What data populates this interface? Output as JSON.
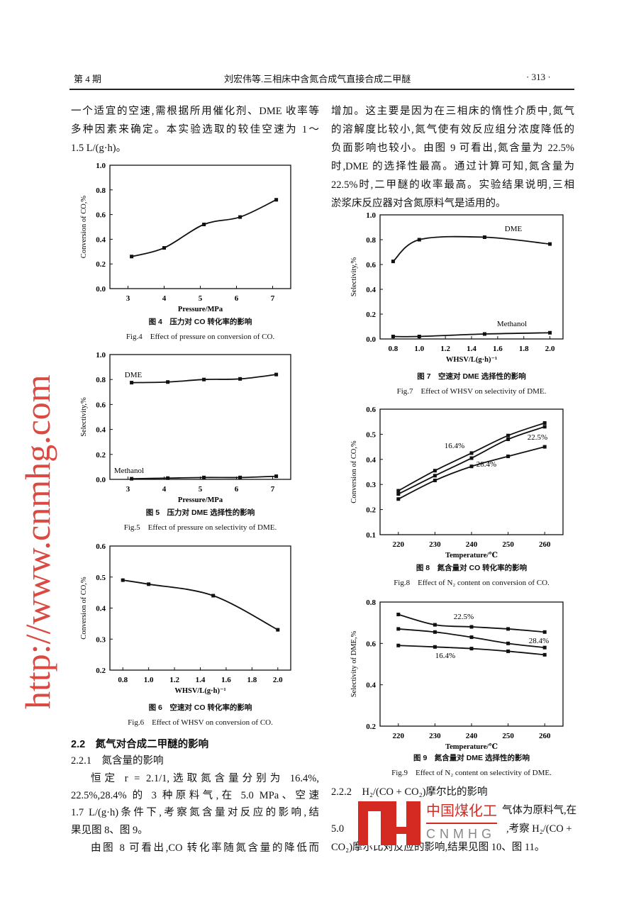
{
  "header": {
    "issue": "第 4 期",
    "title": "刘宏伟等.三相床中含氮合成气直接合成二甲醚",
    "page": "· 313 ·"
  },
  "left_top_lines": [
    "一个适宜的空速,需根据所用催化剂、DME 收率等",
    "多种因素来确定。本实验选取的较佳空速为 1～",
    "1.5 L/(g·h)。"
  ],
  "right_top_lines": [
    "增加。这主要是因为在三相床的惰性介质中,氮气",
    "的溶解度比较小,氮气使有效反应组分浓度降低的",
    "负面影响也较小。由图 9 可看出,氮含量为 22.5%",
    "时,DME 的选择性最高。通过计算可知,氮含量为",
    "22.5%时,二甲醚的收率最高。实验结果说明,三相",
    "淤浆床反应器对含氮原料气是适用的。"
  ],
  "section_2_2": "2.2　氮气对合成二甲醚的影响",
  "section_2_2_1": "2.2.1　氮含量的影响",
  "left_bottom_lines": [
    "恒定 r = 2.1/1,选取氮含量分别为 16.4%,",
    "22.5%,28.4% 的 3 种原料气,在 5.0 MPa、空速",
    "1.7 L/(g·h)条件下,考察氮含量对反应的影响,结",
    "果见图 8、图 9。",
    "由图 8 可看出,CO 转化率随氮含量的降低而"
  ],
  "section_2_2_2": "2.2.2　H₂/(CO + CO₂)摩尔比的影响",
  "right_bottom_lines": [
    "气体为原料气,在",
    "5.0",
    ",考察 H₂/(CO +",
    "CO₂)摩尔比对反应的影响,结果见图 10、图 11。"
  ],
  "watermark": {
    "text": "http://www.cnmhg.com",
    "logo_mark": "MH",
    "logo_cn": "中国煤化工",
    "logo_en": "CNMHG",
    "color": "#d42a22"
  },
  "chart_data": [
    {
      "type": "line",
      "caption_cn": "图 4　压力对 CO 转化率的影响",
      "caption_en": "Fig.4　Effect of pressure on conversion of CO.",
      "xlabel": "Pressure/MPa",
      "ylabel": "Conversion of CO,%",
      "xlim": [
        2.5,
        7.5
      ],
      "ylim": [
        0,
        1.0
      ],
      "xticks": [
        3,
        4,
        5,
        6,
        7
      ],
      "xtick_labels": [
        "3",
        "4",
        "5",
        "6",
        "7"
      ],
      "yticks": [
        0,
        0.2,
        0.4,
        0.6,
        0.8,
        1.0
      ],
      "ytick_labels": [
        "0.0",
        "0.2",
        "0.4",
        "0.6",
        "0.8",
        "1.0"
      ],
      "series": [
        {
          "x": [
            3.1,
            4.0,
            5.1,
            6.1,
            7.1
          ],
          "y": [
            0.26,
            0.33,
            0.52,
            0.58,
            0.72
          ]
        }
      ]
    },
    {
      "type": "line",
      "caption_cn": "图 5　压力对 DME 选择性的影响",
      "caption_en": "Fig.5　Effect of pressure on selectivity of DME.",
      "xlabel": "Pressure/MPa",
      "ylabel": "Selectivity,%",
      "xlim": [
        2.5,
        7.5
      ],
      "ylim": [
        0,
        1.0
      ],
      "xticks": [
        3,
        4,
        5,
        6,
        7
      ],
      "xtick_labels": [
        "3",
        "4",
        "5",
        "6",
        "7"
      ],
      "yticks": [
        0,
        0.2,
        0.4,
        0.6,
        0.8,
        1.0
      ],
      "ytick_labels": [
        "0.0",
        "0.2",
        "0.4",
        "0.6",
        "0.8",
        "1.0"
      ],
      "series": [
        {
          "name": "DME",
          "x": [
            3.1,
            4.1,
            5.1,
            6.1,
            7.1
          ],
          "y": [
            0.775,
            0.78,
            0.8,
            0.805,
            0.84
          ]
        },
        {
          "name": "Methanol",
          "x": [
            3.1,
            4.1,
            5.1,
            6.1,
            7.1
          ],
          "y": [
            0.005,
            0.01,
            0.015,
            0.015,
            0.025
          ]
        }
      ]
    },
    {
      "type": "line",
      "caption_cn": "图 6　空速对 CO 转化率的影响",
      "caption_en": "Fig.6　Effect of WHSV on conversion of CO.",
      "xlabel": "WHSV/L(g·h)⁻¹",
      "ylabel": "Conversion of CO,%",
      "xlim": [
        0.7,
        2.1
      ],
      "ylim": [
        0.2,
        0.6
      ],
      "xticks": [
        0.8,
        1.0,
        1.2,
        1.4,
        1.6,
        1.8,
        2.0
      ],
      "xtick_labels": [
        "0.8",
        "1.0",
        "1.2",
        "1.4",
        "1.6",
        "1.8",
        "2.0"
      ],
      "yticks": [
        0.2,
        0.3,
        0.4,
        0.5,
        0.6
      ],
      "ytick_labels": [
        "0.2",
        "0.3",
        "0.4",
        "0.5",
        "0.6"
      ],
      "series": [
        {
          "x": [
            0.8,
            1.0,
            1.5,
            2.0
          ],
          "y": [
            0.49,
            0.477,
            0.44,
            0.33
          ]
        }
      ]
    },
    {
      "type": "line",
      "caption_cn": "图 7　空速对 DME 选择性的影响",
      "caption_en": "Fig.7　Effect of WHSV on selectivity of DME.",
      "xlabel": "WHSV/L(g·h)⁻¹",
      "ylabel": "Selectivity,%",
      "xlim": [
        0.7,
        2.1
      ],
      "ylim": [
        0,
        1.0
      ],
      "xticks": [
        0.8,
        1.0,
        1.2,
        1.4,
        1.6,
        1.8,
        2.0
      ],
      "xtick_labels": [
        "0.8",
        "1.0",
        "1.2",
        "1.4",
        "1.6",
        "1.8",
        "2.0"
      ],
      "yticks": [
        0,
        0.2,
        0.4,
        0.6,
        0.8,
        1.0
      ],
      "ytick_labels": [
        "0.0",
        "0.2",
        "0.4",
        "0.6",
        "0.8",
        "1.0"
      ],
      "series": [
        {
          "name": "DME",
          "x": [
            0.8,
            1.0,
            1.5,
            2.0
          ],
          "y": [
            0.625,
            0.8,
            0.82,
            0.765
          ]
        },
        {
          "name": "Methanol",
          "x": [
            0.8,
            1.0,
            1.5,
            2.0
          ],
          "y": [
            0.02,
            0.02,
            0.04,
            0.05
          ]
        }
      ]
    },
    {
      "type": "line",
      "caption_cn": "图 8　氮含量对 CO 转化率的影响",
      "caption_en": "Fig.8　Effect of N₂ content on conversion of CO.",
      "xlabel": "Temperature/℃",
      "ylabel": "Conversion of CO,%",
      "xlim": [
        215,
        265
      ],
      "ylim": [
        0.1,
        0.6
      ],
      "xticks": [
        220,
        230,
        240,
        250,
        260
      ],
      "xtick_labels": [
        "220",
        "230",
        "240",
        "250",
        "260"
      ],
      "yticks": [
        0.1,
        0.2,
        0.3,
        0.4,
        0.5,
        0.6
      ],
      "ytick_labels": [
        "0.1",
        "0.2",
        "0.3",
        "0.4",
        "0.5",
        "0.6"
      ],
      "series": [
        {
          "name": "16.4%",
          "x": [
            220,
            230,
            240,
            250,
            260
          ],
          "y": [
            0.275,
            0.355,
            0.425,
            0.495,
            0.545
          ]
        },
        {
          "name": "22.5%",
          "x": [
            220,
            230,
            240,
            250,
            260
          ],
          "y": [
            0.262,
            0.335,
            0.405,
            0.48,
            0.53
          ]
        },
        {
          "name": "28.4%",
          "x": [
            220,
            230,
            240,
            250,
            260
          ],
          "y": [
            0.242,
            0.316,
            0.372,
            0.412,
            0.45
          ]
        }
      ]
    },
    {
      "type": "line",
      "caption_cn": "图 9　氮含量对 DME 选择性的影响",
      "caption_en": "Fig.9　Effect of N₂ content on selectivity of DME.",
      "xlabel": "Temperature/℃",
      "ylabel": "Selectivity of DME,%",
      "xlim": [
        215,
        265
      ],
      "ylim": [
        0.2,
        0.8
      ],
      "xticks": [
        220,
        230,
        240,
        250,
        260
      ],
      "xtick_labels": [
        "220",
        "230",
        "240",
        "250",
        "260"
      ],
      "yticks": [
        0.2,
        0.4,
        0.6,
        0.8
      ],
      "ytick_labels": [
        "0.2",
        "0.4",
        "0.6",
        "0.8"
      ],
      "series": [
        {
          "name": "22.5%",
          "x": [
            220,
            230,
            240,
            250,
            260
          ],
          "y": [
            0.74,
            0.69,
            0.68,
            0.67,
            0.655
          ]
        },
        {
          "name": "28.4%",
          "x": [
            220,
            230,
            240,
            250,
            260
          ],
          "y": [
            0.67,
            0.655,
            0.63,
            0.6,
            0.58
          ]
        },
        {
          "name": "16.4%",
          "x": [
            220,
            230,
            240,
            250,
            260
          ],
          "y": [
            0.59,
            0.583,
            0.575,
            0.562,
            0.545
          ]
        }
      ]
    }
  ]
}
